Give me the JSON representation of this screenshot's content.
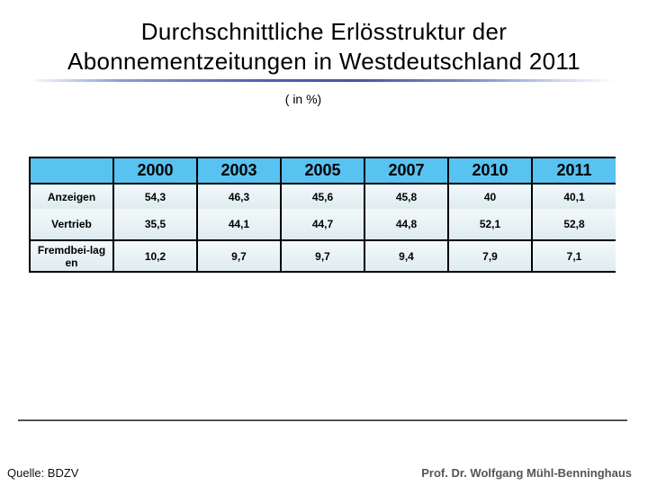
{
  "slide": {
    "title_lines": [
      "Durchschnittliche Erlösstruktur der",
      "Abonnementzeitungen in Westdeutschland 2011"
    ],
    "subtitle": "( in %)",
    "source": "Quelle: BDZV",
    "credit": "Prof. Dr. Wolfgang Mühl-Benninghaus"
  },
  "table": {
    "columns": [
      "",
      "2000",
      "2003",
      "2005",
      "2007",
      "2010",
      "2011"
    ],
    "rows": [
      {
        "label": "Anzeigen",
        "values": [
          "54,3",
          "46,3",
          "45,6",
          "45,8",
          "40",
          "40,1"
        ]
      },
      {
        "label": "Vertrieb",
        "values": [
          "35,5",
          "44,1",
          "44,7",
          "44,8",
          "52,1",
          "52,8"
        ]
      },
      {
        "label": "Fremdbei-lag\nen",
        "values": [
          "10,2",
          "9,7",
          "9,7",
          "9,4",
          "7,9",
          "7,1"
        ]
      }
    ]
  },
  "colors": {
    "header_bg": "#58c2f0",
    "body_cell_top": "#f2f9fa",
    "body_cell_bottom": "#dfecef",
    "table_border": "#000000",
    "title_underline_blue": "#46549f",
    "footer_rule": "#333333",
    "credit_text": "#555555"
  }
}
